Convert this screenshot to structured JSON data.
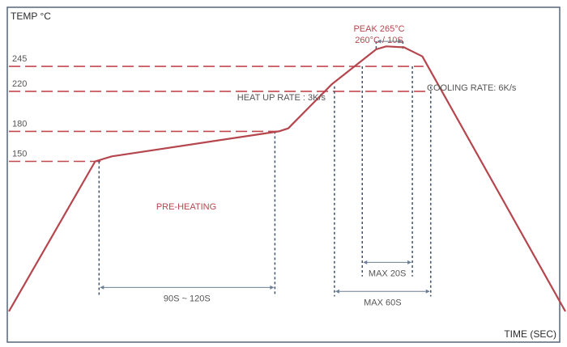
{
  "colors": {
    "frame": "#4a5a6e",
    "curve": "#b5464e",
    "threshold": "#c2484f",
    "guide": "#3f5168",
    "text": "#2b2b2b",
    "note_red": "#b5464e",
    "note_gray": "#555555"
  },
  "chart_data": {
    "type": "line",
    "title": "",
    "xlabel": "TIME (SEC)",
    "ylabel": "TEMP °C",
    "x_range": [
      0,
      100
    ],
    "ylim": [
      0,
      300
    ],
    "grid": false,
    "legend": "none",
    "y_ticks": [
      {
        "value": 150,
        "label": "150"
      },
      {
        "value": 180,
        "label": "180"
      },
      {
        "value": 220,
        "label": "220"
      },
      {
        "value": 245,
        "label": "245"
      }
    ],
    "series": [
      {
        "name": "",
        "x": [
          0,
          15.5,
          18.5,
          48.5,
          50.2,
          58,
          66,
          67.8,
          71,
          74.3,
          100
        ],
        "y": [
          0,
          150,
          155,
          180,
          183,
          227,
          262,
          265,
          264,
          255,
          0
        ]
      }
    ],
    "guides": [
      {
        "x": 16.2,
        "y_from": 150,
        "y_to": 15
      },
      {
        "x": 47.8,
        "y_from": 180,
        "y_to": 15
      },
      {
        "x": 58.5,
        "y_from": 225,
        "y_to": 15
      },
      {
        "x": 63.5,
        "y_from": 245,
        "y_to": 35
      },
      {
        "x": 72.5,
        "y_from": 245,
        "y_to": 35
      },
      {
        "x": 75.8,
        "y_from": 225,
        "y_to": 15
      },
      {
        "x": 66.0,
        "y_from": 270,
        "y_to": 262
      },
      {
        "x": 70.8,
        "y_from": 270,
        "y_to": 262
      }
    ],
    "spans": [
      {
        "x1": 16.2,
        "x2": 47.8,
        "y": 24,
        "label": "90S ~ 120S"
      },
      {
        "x1": 63.5,
        "x2": 72.5,
        "y": 49,
        "label": "MAX 20S"
      },
      {
        "x1": 58.5,
        "x2": 75.8,
        "y": 20,
        "label": "MAX 60S"
      },
      {
        "x1": 66.0,
        "x2": 70.8,
        "y": 270,
        "label": ""
      }
    ],
    "annotations": {
      "peak_line1": "PEAK 265°C",
      "peak_line2": "260°C / 10S",
      "heat_up": "HEAT UP RATE : 3K/s",
      "cooling": "COOLING RATE: 6K/s",
      "pre_heating": "PRE-HEATING"
    }
  }
}
